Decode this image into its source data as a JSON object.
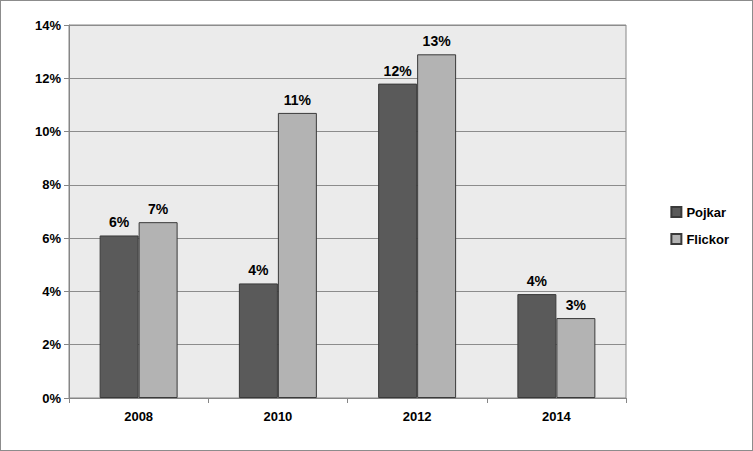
{
  "chart_data": {
    "type": "bar",
    "categories": [
      "2008",
      "2010",
      "2012",
      "2014"
    ],
    "series": [
      {
        "name": "Pojkar",
        "color": "#5a5a5a",
        "values": [
          6.1,
          4.3,
          11.8,
          3.9
        ],
        "value_labels": [
          "6%",
          "4%",
          "12%",
          "4%"
        ]
      },
      {
        "name": "Flickor",
        "color": "#b3b3b3",
        "values": [
          6.6,
          10.7,
          12.9,
          3.0
        ],
        "value_labels": [
          "7%",
          "11%",
          "13%",
          "3%"
        ]
      }
    ],
    "ylim": [
      0,
      14
    ],
    "yticks": [
      {
        "value": 0,
        "label": "0%"
      },
      {
        "value": 2,
        "label": "2%"
      },
      {
        "value": 4,
        "label": "4%"
      },
      {
        "value": 6,
        "label": "6%"
      },
      {
        "value": 8,
        "label": "8%"
      },
      {
        "value": 10,
        "label": "10%"
      },
      {
        "value": 12,
        "label": "12%"
      },
      {
        "value": 14,
        "label": "14%"
      }
    ],
    "grid": true,
    "legend": "right",
    "data_labels": true
  }
}
